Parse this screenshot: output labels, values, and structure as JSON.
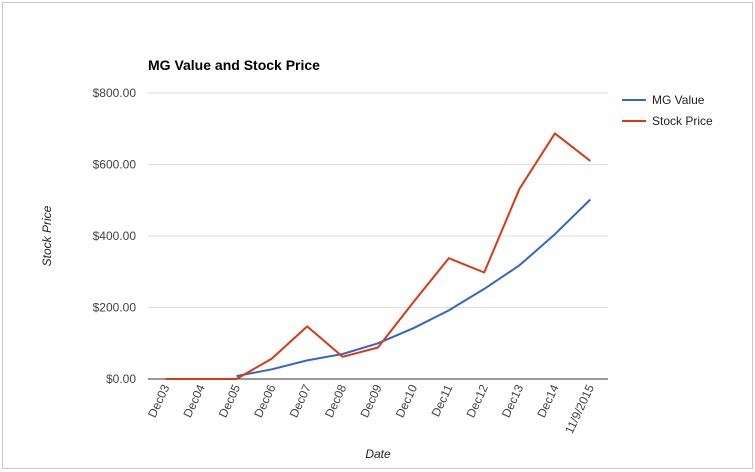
{
  "chart_data": {
    "type": "line",
    "title": "MG Value and Stock Price",
    "xlabel": "Date",
    "ylabel": "Stock Price",
    "categories": [
      "Dec03",
      "Dec04",
      "Dec05",
      "Dec06",
      "Dec07",
      "Dec08",
      "Dec09",
      "Dec10",
      "Dec11",
      "Dec12",
      "Dec13",
      "Dec14",
      "11/9/2015"
    ],
    "y_ticks": [
      "$0.00",
      "$200.00",
      "$400.00",
      "$600.00",
      "$800.00"
    ],
    "ylim": [
      0,
      800
    ],
    "grid": true,
    "legend_position": "right",
    "series": [
      {
        "name": "MG Value",
        "color": "#3366cc",
        "values": [
          null,
          null,
          8,
          27,
          52,
          70,
          100,
          142,
          192,
          252,
          318,
          405,
          502
        ]
      },
      {
        "name": "Stock Price",
        "color": "#dc3912",
        "values": [
          0,
          0,
          0,
          57,
          147,
          62,
          88,
          215,
          338,
          298,
          532,
          687,
          610
        ]
      }
    ]
  }
}
